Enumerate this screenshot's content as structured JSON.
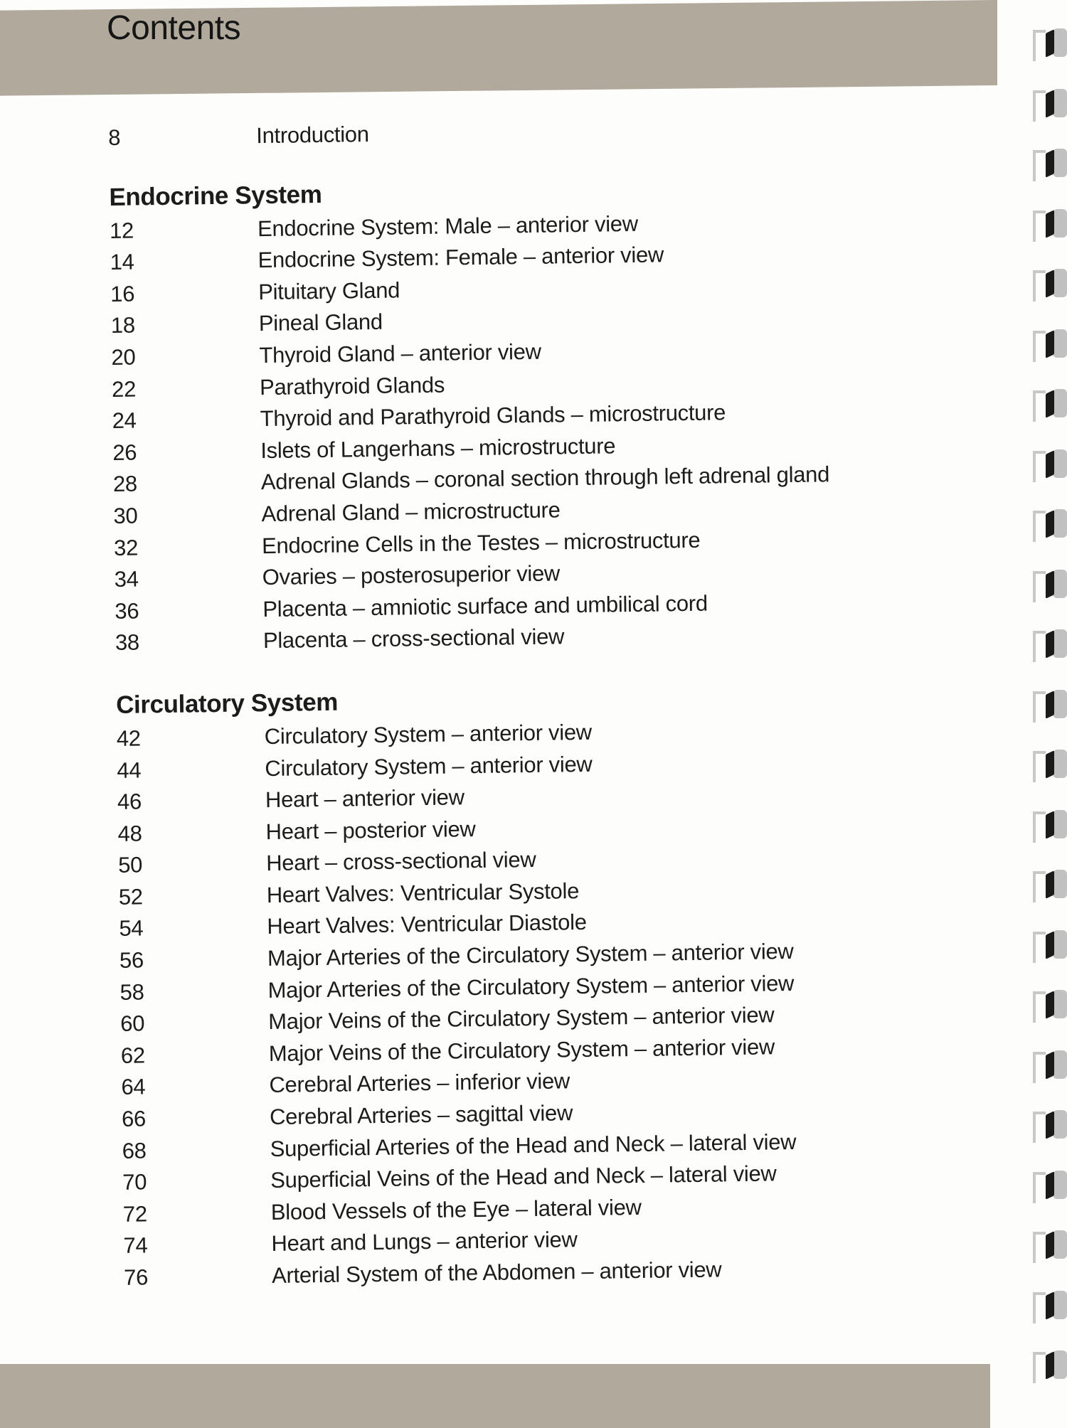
{
  "header": {
    "title": "Contents"
  },
  "intro": {
    "page": "8",
    "title": "Introduction"
  },
  "sections": [
    {
      "heading": "Endocrine System",
      "entries": [
        {
          "page": "12",
          "title": "Endocrine System: Male – anterior view"
        },
        {
          "page": "14",
          "title": "Endocrine System: Female – anterior view"
        },
        {
          "page": "16",
          "title": "Pituitary Gland"
        },
        {
          "page": "18",
          "title": "Pineal Gland"
        },
        {
          "page": "20",
          "title": "Thyroid Gland – anterior view"
        },
        {
          "page": "22",
          "title": "Parathyroid Glands"
        },
        {
          "page": "24",
          "title": "Thyroid and Parathyroid Glands – microstructure"
        },
        {
          "page": "26",
          "title": "Islets of Langerhans – microstructure"
        },
        {
          "page": "28",
          "title": "Adrenal Glands – coronal section through left adrenal gland"
        },
        {
          "page": "30",
          "title": "Adrenal Gland – microstructure"
        },
        {
          "page": "32",
          "title": "Endocrine Cells in the Testes – microstructure"
        },
        {
          "page": "34",
          "title": "Ovaries – posterosuperior view"
        },
        {
          "page": "36",
          "title": "Placenta – amniotic surface and umbilical cord"
        },
        {
          "page": "38",
          "title": "Placenta – cross-sectional view"
        }
      ]
    },
    {
      "heading": "Circulatory System",
      "entries": [
        {
          "page": "42",
          "title": "Circulatory System – anterior view"
        },
        {
          "page": "44",
          "title": "Circulatory System – anterior view"
        },
        {
          "page": "46",
          "title": "Heart – anterior view"
        },
        {
          "page": "48",
          "title": "Heart – posterior view"
        },
        {
          "page": "50",
          "title": "Heart – cross-sectional view"
        },
        {
          "page": "52",
          "title": "Heart Valves: Ventricular Systole"
        },
        {
          "page": "54",
          "title": "Heart Valves: Ventricular Diastole"
        },
        {
          "page": "56",
          "title": "Major Arteries of the Circulatory System – anterior view"
        },
        {
          "page": "58",
          "title": "Major Arteries of the Circulatory System – anterior view"
        },
        {
          "page": "60",
          "title": "Major Veins of the Circulatory System – anterior view"
        },
        {
          "page": "62",
          "title": "Major Veins of the Circulatory System – anterior view"
        },
        {
          "page": "64",
          "title": "Cerebral Arteries – inferior view"
        },
        {
          "page": "66",
          "title": "Cerebral Arteries – sagittal view"
        },
        {
          "page": "68",
          "title": "Superficial Arteries of the Head and Neck – lateral view"
        },
        {
          "page": "70",
          "title": "Superficial Veins of the Head and Neck – lateral view"
        },
        {
          "page": "72",
          "title": "Blood Vessels of the Eye – lateral view"
        },
        {
          "page": "74",
          "title": "Heart and Lungs – anterior view"
        },
        {
          "page": "76",
          "title": "Arterial System of the Abdomen – anterior view"
        }
      ]
    }
  ],
  "colors": {
    "band": "#b1a99b",
    "text": "#1c1c1c",
    "page": "#fdfdfc"
  },
  "binding": {
    "icon": "spiral-binding-icon",
    "rings": 23
  }
}
